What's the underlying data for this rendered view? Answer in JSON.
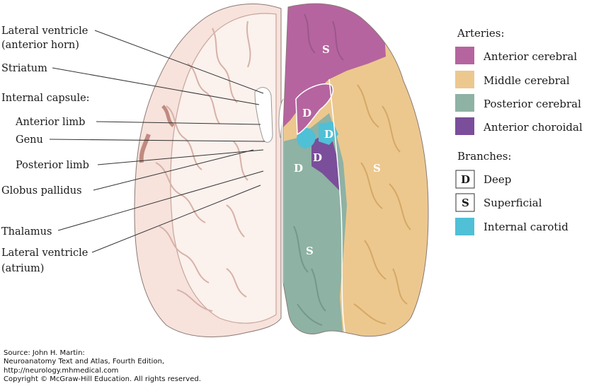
{
  "labels": {
    "lateral_ventricle_anterior_1": "Lateral ventricle",
    "lateral_ventricle_anterior_2": "(anterior horn)",
    "striatum": "Striatum",
    "internal_capsule": "Internal capsule:",
    "anterior_limb": "Anterior limb",
    "genu": "Genu",
    "posterior_limb": "Posterior limb",
    "globus_pallidus": "Globus pallidus",
    "thalamus": "Thalamus",
    "lateral_ventricle_atrium_1": "Lateral ventricle",
    "lateral_ventricle_atrium_2": "(atrium)"
  },
  "region_letters": {
    "aca_superficial": "S",
    "aca_deep": "D",
    "mca_deep": "D",
    "choroidal_deep": "D",
    "pca_deep": "D",
    "mca_superficial": "S",
    "pca_superficial": "S"
  },
  "legend": {
    "arteries_title": "Arteries:",
    "arteries": [
      {
        "label": "Anterior cerebral",
        "color": "#b5649f"
      },
      {
        "label": "Middle cerebral",
        "color": "#ecc88f"
      },
      {
        "label": "Posterior cerebral",
        "color": "#8eb2a4"
      },
      {
        "label": "Anterior choroidal",
        "color": "#7a4e9a"
      }
    ],
    "branches_title": "Branches:",
    "branches": [
      {
        "key": "D",
        "label": "Deep"
      },
      {
        "key": "S",
        "label": "Superficial"
      },
      {
        "key": "",
        "label": "Internal carotid",
        "color": "#4fc0d6"
      }
    ]
  },
  "source": {
    "line1": "Source: John H. Martin:",
    "line2": "Neuroanatomy Text and Atlas, Fourth Edition,",
    "line3": "http://neurology.mhmedical.com",
    "line4": "Copyright © McGraw-Hill Education. All rights reserved."
  }
}
